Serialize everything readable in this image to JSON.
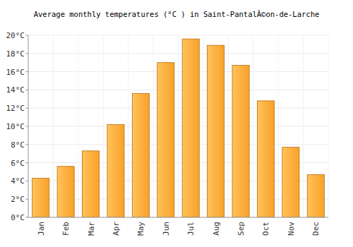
{
  "chart_data": {
    "type": "bar",
    "title": "Average monthly temperatures (°C ) in Saint-PantalÃ©on-de-Larche",
    "categories": [
      "Jan",
      "Feb",
      "Mar",
      "Apr",
      "May",
      "Jun",
      "Jul",
      "Aug",
      "Sep",
      "Oct",
      "Nov",
      "Dec"
    ],
    "values": [
      4.3,
      5.6,
      7.3,
      10.2,
      13.6,
      17.0,
      19.6,
      18.9,
      16.7,
      12.8,
      7.7,
      4.7
    ],
    "color": "#f9a12a",
    "ylim": [
      0,
      20
    ],
    "yticks": [
      {
        "value": 0,
        "label": "0°C"
      },
      {
        "value": 2,
        "label": "2°C"
      },
      {
        "value": 4,
        "label": "4°C"
      },
      {
        "value": 6,
        "label": "6°C"
      },
      {
        "value": 8,
        "label": "8°C"
      },
      {
        "value": 10,
        "label": "10°C"
      },
      {
        "value": 12,
        "label": "12°C"
      },
      {
        "value": 14,
        "label": "14°C"
      },
      {
        "value": 16,
        "label": "16°C"
      },
      {
        "value": 18,
        "label": "18°C"
      },
      {
        "value": 20,
        "label": "20°C"
      }
    ],
    "grid": true
  }
}
